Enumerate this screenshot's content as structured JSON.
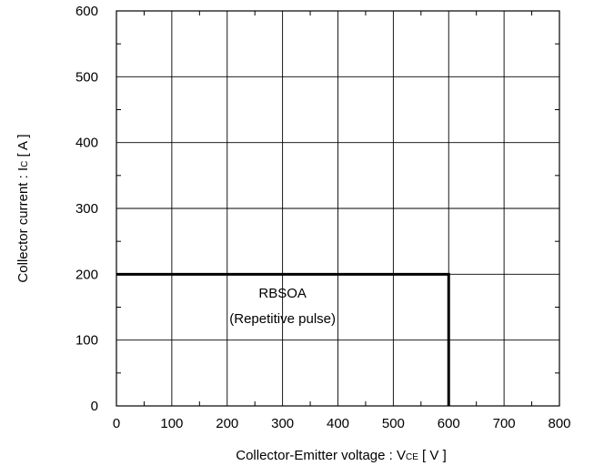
{
  "chart_data": {
    "type": "line",
    "title": "",
    "xlabel": {
      "main": "Collector-Emitter voltage : V",
      "sub": "CE",
      "unit": "  [ V ]"
    },
    "ylabel": {
      "main": "Collector current : I",
      "sub": "C",
      "unit": " [ A ]"
    },
    "xlim": [
      0,
      800
    ],
    "ylim": [
      0,
      600
    ],
    "x_ticks": [
      0,
      100,
      200,
      300,
      400,
      500,
      600,
      700,
      800
    ],
    "y_ticks": [
      0,
      100,
      200,
      300,
      400,
      500,
      600
    ],
    "x_tick_labels": [
      "0",
      "100",
      "200",
      "300",
      "400",
      "500",
      "600",
      "700",
      "800"
    ],
    "y_tick_labels": [
      "0",
      "100",
      "200",
      "300",
      "400",
      "500",
      "600"
    ],
    "grid": true,
    "series": [
      {
        "x": [
          0,
          600,
          600
        ],
        "y": [
          200,
          200,
          0
        ],
        "color": "#000000"
      }
    ],
    "annotations": [
      {
        "line1": "RBSOA",
        "line2": "(Repetitive pulse)",
        "x": 300,
        "y": 150
      }
    ]
  }
}
